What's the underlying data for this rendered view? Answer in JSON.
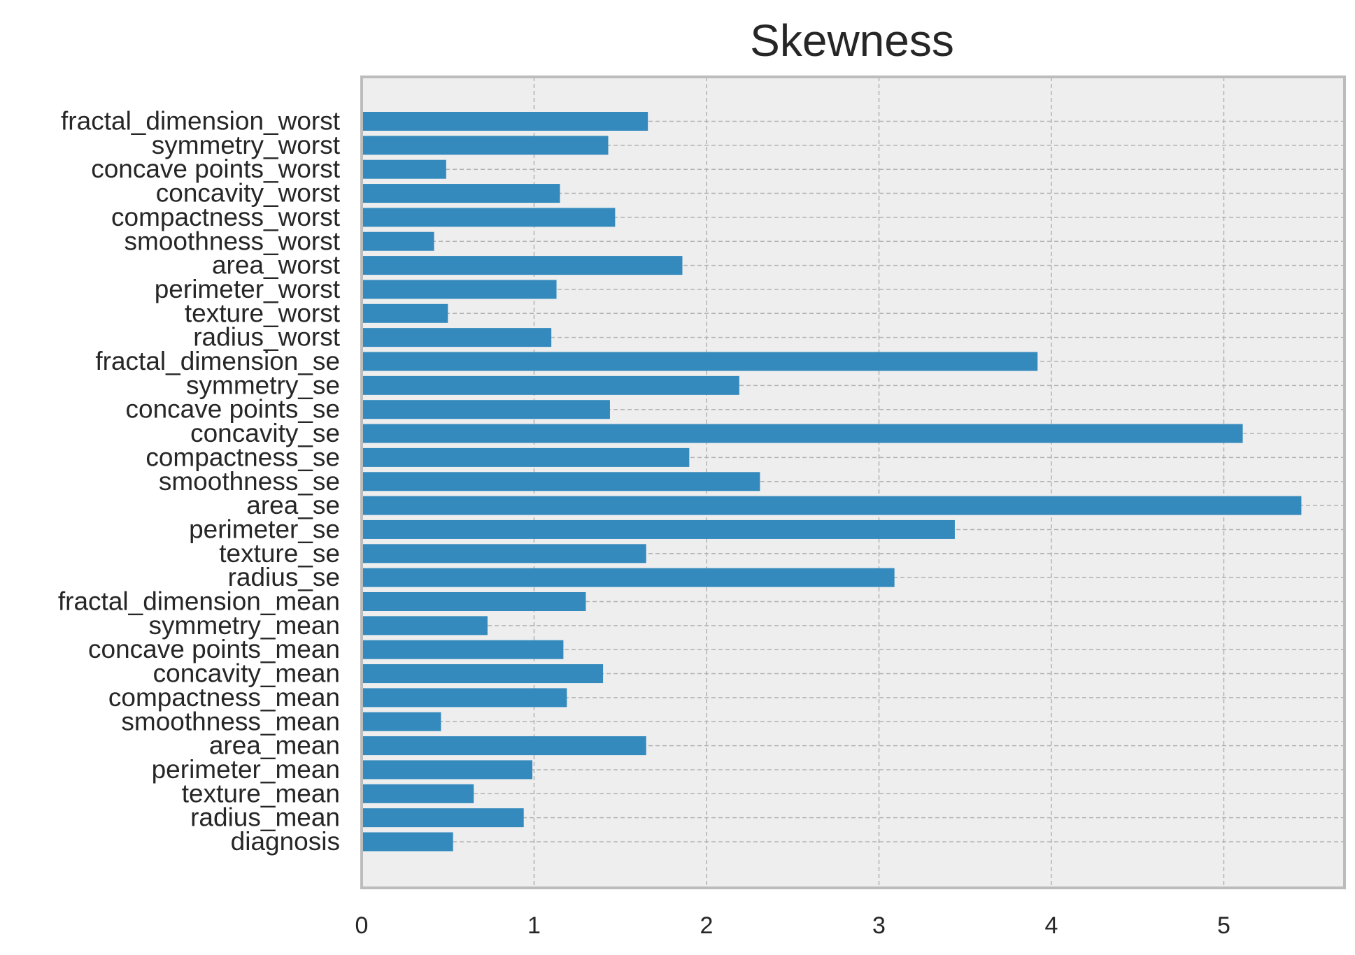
{
  "chart_data": {
    "type": "bar",
    "orientation": "horizontal",
    "title": "Skewness",
    "xlabel": "",
    "ylabel": "",
    "xlim": [
      0,
      5.7
    ],
    "xticks": [
      0,
      1,
      2,
      3,
      4,
      5
    ],
    "grid": true,
    "bar_color": "#348abd",
    "background_color": "#eeeeee",
    "categories": [
      "diagnosis",
      "radius_mean",
      "texture_mean",
      "perimeter_mean",
      "area_mean",
      "smoothness_mean",
      "compactness_mean",
      "concavity_mean",
      "concave points_mean",
      "symmetry_mean",
      "fractal_dimension_mean",
      "radius_se",
      "texture_se",
      "perimeter_se",
      "area_se",
      "smoothness_se",
      "compactness_se",
      "concavity_se",
      "concave points_se",
      "symmetry_se",
      "fractal_dimension_se",
      "radius_worst",
      "texture_worst",
      "perimeter_worst",
      "area_worst",
      "smoothness_worst",
      "compactness_worst",
      "concavity_worst",
      "concave points_worst",
      "symmetry_worst",
      "fractal_dimension_worst"
    ],
    "values": [
      0.53,
      0.94,
      0.65,
      0.99,
      1.65,
      0.46,
      1.19,
      1.4,
      1.17,
      0.73,
      1.3,
      3.09,
      1.65,
      3.44,
      5.45,
      2.31,
      1.9,
      5.11,
      1.44,
      2.19,
      3.92,
      1.1,
      0.5,
      1.13,
      1.86,
      0.42,
      1.47,
      1.15,
      0.49,
      1.43,
      1.66
    ]
  }
}
